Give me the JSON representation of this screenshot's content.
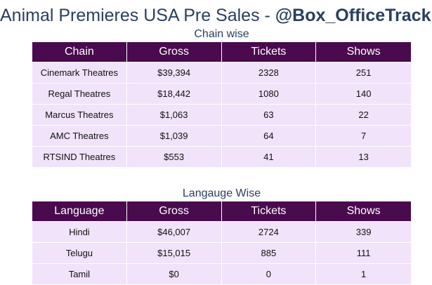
{
  "title": {
    "prefix": "Animal Premieres USA Pre Sales - ",
    "handle": "@Box_OfficeTrack"
  },
  "colors": {
    "header_bg": "#4a0a4e",
    "row_bg": "#f0e3fa",
    "title_text": "#2a3f5f"
  },
  "chain": {
    "title": "Chain wise",
    "headers": [
      "Chain",
      "Gross",
      "Tickets",
      "Shows"
    ],
    "rows": [
      [
        "Cinemark Theatres",
        "$39,394",
        "2328",
        "251"
      ],
      [
        "Regal Theatres",
        "$18,442",
        "1080",
        "140"
      ],
      [
        "Marcus Theatres",
        "$1,063",
        "63",
        "22"
      ],
      [
        "AMC Theatres",
        "$1,039",
        "64",
        "7"
      ],
      [
        "RTSIND Theatres",
        "$553",
        "41",
        "13"
      ]
    ]
  },
  "language": {
    "title": "Langauge Wise",
    "headers": [
      "Language",
      "Gross",
      "Tickets",
      "Shows"
    ],
    "rows": [
      [
        "Hindi",
        "$46,007",
        "2724",
        "339"
      ],
      [
        "Telugu",
        "$15,015",
        "885",
        "111"
      ],
      [
        "Tamil",
        "$0",
        "0",
        "1"
      ]
    ]
  }
}
